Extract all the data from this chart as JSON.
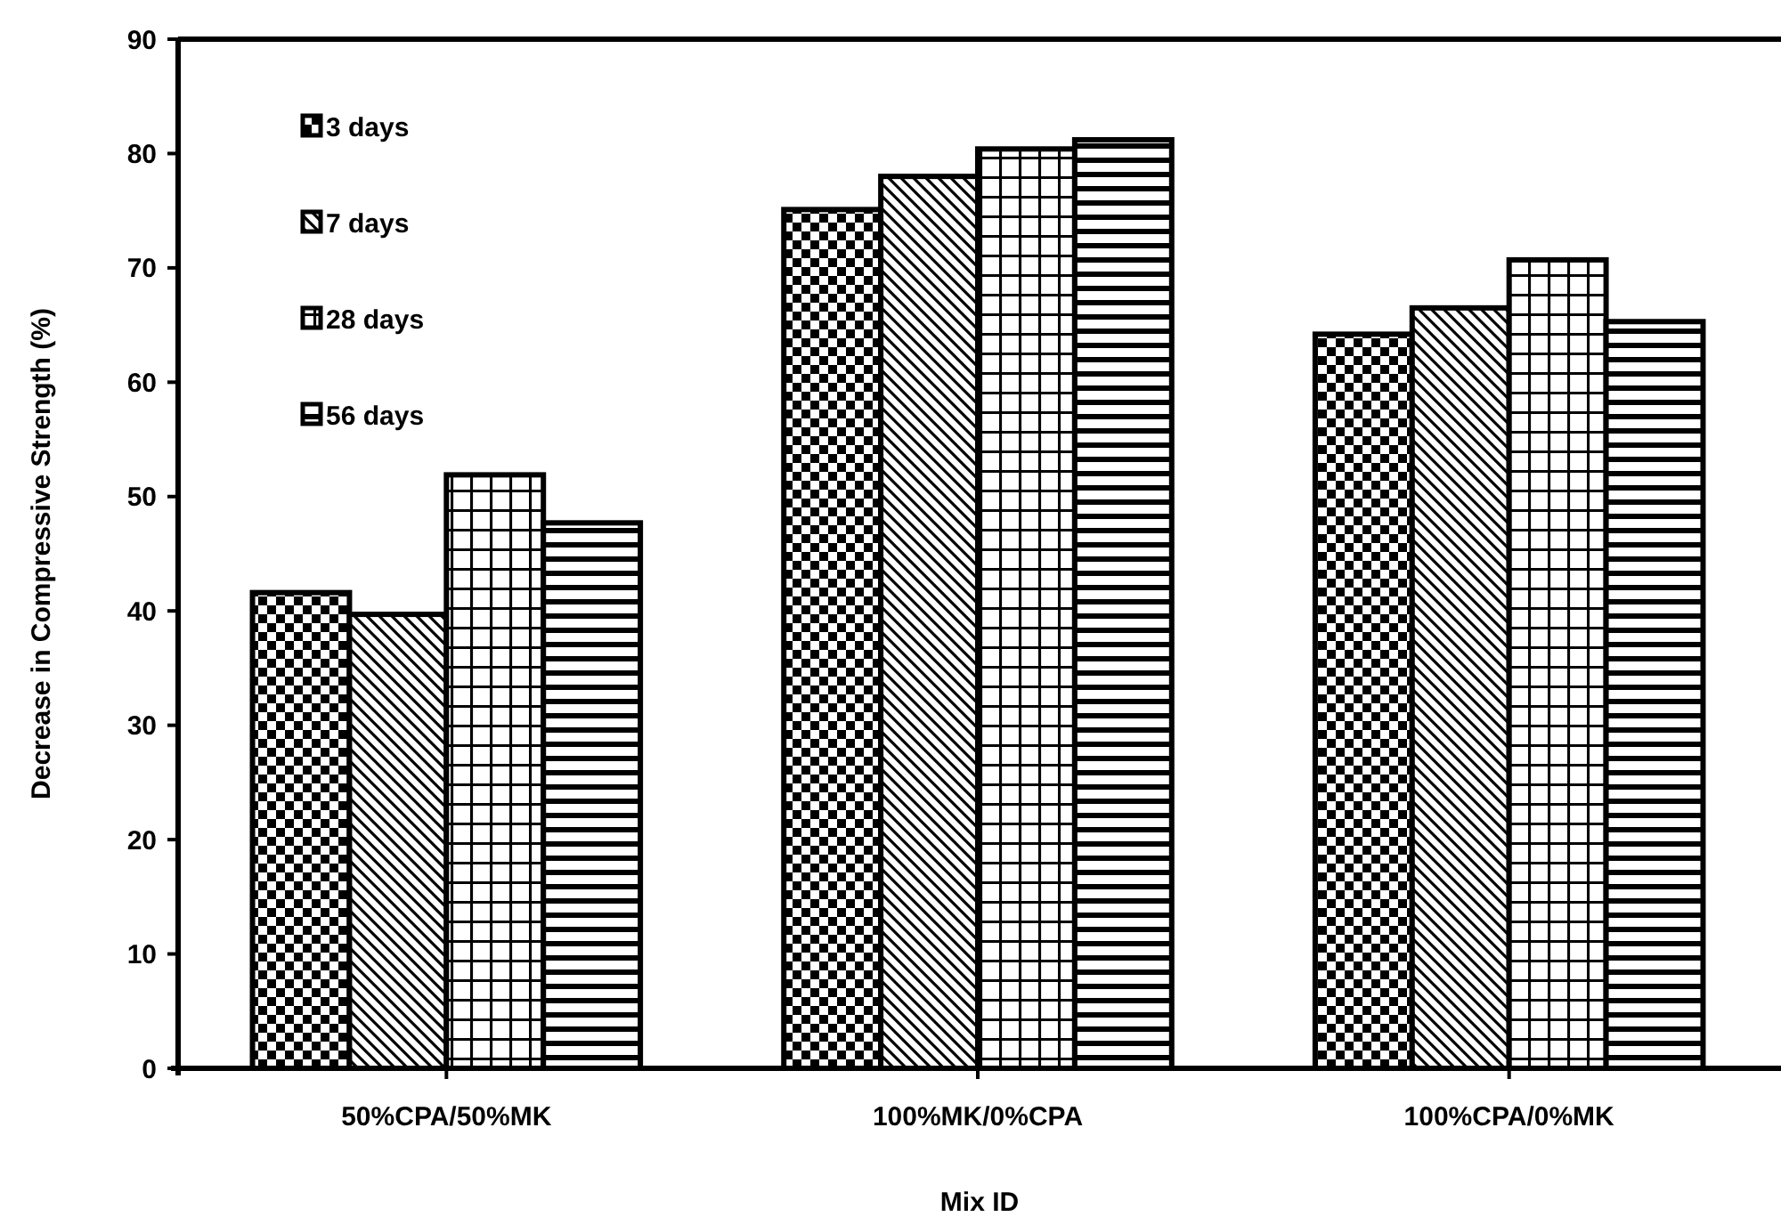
{
  "chart_data": {
    "type": "bar",
    "xlabel": "Mix ID",
    "ylabel": "Decrease in Compressive Strength (%)",
    "categories": [
      "50%CPA/50%MK",
      "100%MK/0%CPA",
      "100%CPA/0%MK"
    ],
    "series": [
      {
        "name": "3 days",
        "color": "#000000",
        "values": [
          41.6,
          75.1,
          64.2
        ]
      },
      {
        "name": "7 days",
        "color": "#000000",
        "values": [
          39.7,
          78.0,
          66.5
        ]
      },
      {
        "name": "28 days",
        "color": "#000000",
        "values": [
          51.9,
          80.4,
          70.7
        ]
      },
      {
        "name": "56 days",
        "color": "#000000",
        "values": [
          47.7,
          81.2,
          65.3
        ]
      }
    ],
    "ylim": [
      0,
      90
    ],
    "yticks": [
      0,
      10,
      20,
      30,
      40,
      50,
      60,
      70,
      80,
      90
    ],
    "grid": false,
    "legend": "top left"
  }
}
